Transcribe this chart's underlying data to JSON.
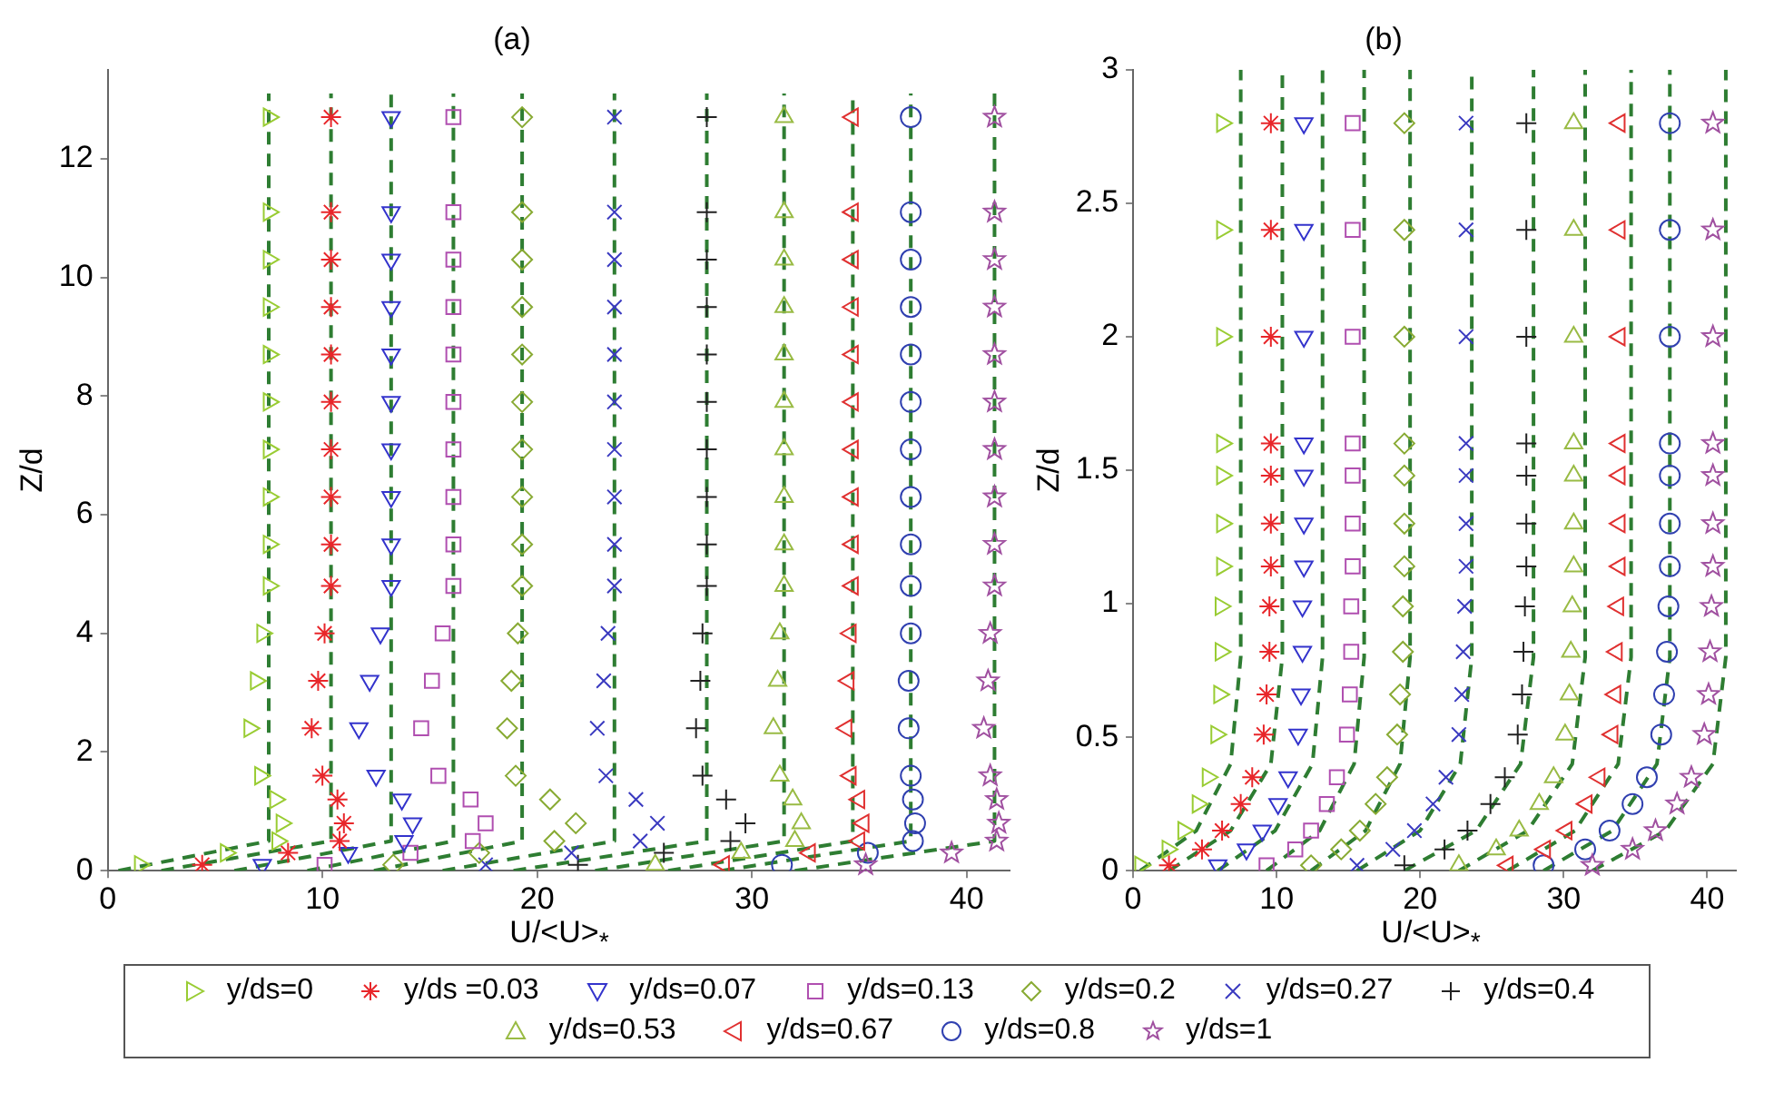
{
  "chart_data": [
    {
      "type": "scatter",
      "title": "(a)",
      "xlabel": "U/<U>$_{*}$",
      "ylabel": "Z/d",
      "xlim": [
        0,
        42
      ],
      "xticks": [
        0,
        10,
        20,
        30,
        40
      ],
      "ylim": [
        0,
        13.5
      ],
      "yticks": [
        0,
        2,
        4,
        6,
        8,
        10,
        12
      ],
      "legend": "bottom",
      "series": [
        {
          "name": "y/ds=0",
          "color": "#99cc33",
          "marker": "triangle-right",
          "x": [
            7.5,
            7.5,
            7.5,
            7.5,
            7.5,
            7.5,
            7.5,
            7.5,
            7.5,
            7.5,
            7.2,
            6.9,
            6.6,
            7.1,
            7.8,
            8.1,
            7.9,
            5.5,
            1.5
          ],
          "values": [
            12.7,
            11.1,
            10.3,
            9.5,
            8.7,
            7.9,
            7.1,
            6.3,
            5.5,
            4.8,
            4.0,
            3.2,
            2.4,
            1.6,
            1.2,
            0.8,
            0.5,
            0.3,
            0.1
          ]
        },
        {
          "name": "y/ds =0.03",
          "color": "#e8262a",
          "x": [
            10.4,
            10.4,
            10.4,
            10.4,
            10.4,
            10.4,
            10.4,
            10.4,
            10.4,
            10.4,
            10.1,
            9.8,
            9.5,
            10.0,
            10.7,
            11.0,
            10.8,
            8.4,
            4.4
          ],
          "values": [
            12.7,
            11.1,
            10.3,
            9.5,
            8.7,
            7.9,
            7.1,
            6.3,
            5.5,
            4.8,
            4.0,
            3.2,
            2.4,
            1.6,
            1.2,
            0.8,
            0.5,
            0.3,
            0.1
          ]
        },
        {
          "name": "y/ds=0.07",
          "color": "#3333cc",
          "marker": "triangle-down",
          "x": [
            13.2,
            13.2,
            13.2,
            13.2,
            13.2,
            13.2,
            13.2,
            13.2,
            13.2,
            13.2,
            12.7,
            12.2,
            11.7,
            12.5,
            13.7,
            14.2,
            13.8,
            11.2,
            7.2
          ],
          "values": [
            12.7,
            11.1,
            10.3,
            9.5,
            8.7,
            7.9,
            7.1,
            6.3,
            5.5,
            4.8,
            4.0,
            3.2,
            2.4,
            1.6,
            1.2,
            0.8,
            0.5,
            0.3,
            0.1
          ]
        },
        {
          "name": "y/ds=0.13",
          "color": "#b04fb0",
          "marker": "square",
          "x": [
            16.1,
            16.1,
            16.1,
            16.1,
            16.1,
            16.1,
            16.1,
            16.1,
            16.1,
            16.1,
            15.6,
            15.1,
            14.6,
            15.4,
            16.9,
            17.6,
            17.0,
            14.1,
            10.1
          ],
          "values": [
            12.7,
            11.1,
            10.3,
            9.5,
            8.7,
            7.9,
            7.1,
            6.3,
            5.5,
            4.8,
            4.0,
            3.2,
            2.4,
            1.6,
            1.2,
            0.8,
            0.5,
            0.3,
            0.1
          ]
        },
        {
          "name": "y/ds=0.2",
          "color": "#88aa33",
          "marker": "diamond",
          "x": [
            19.3,
            19.3,
            19.3,
            19.3,
            19.3,
            19.3,
            19.3,
            19.3,
            19.3,
            19.3,
            19.1,
            18.8,
            18.6,
            19.0,
            20.6,
            21.8,
            20.8,
            17.3,
            13.3
          ],
          "values": [
            12.7,
            11.1,
            10.3,
            9.5,
            8.7,
            7.9,
            7.1,
            6.3,
            5.5,
            4.8,
            4.0,
            3.2,
            2.4,
            1.6,
            1.2,
            0.8,
            0.5,
            0.3,
            0.1
          ]
        },
        {
          "name": "y/ds=0.27",
          "color": "#3a3ac0",
          "marker": "x",
          "x": [
            23.6,
            23.6,
            23.6,
            23.6,
            23.6,
            23.6,
            23.6,
            23.6,
            23.6,
            23.6,
            23.3,
            23.1,
            22.8,
            23.2,
            24.6,
            25.6,
            24.8,
            21.6,
            17.6
          ],
          "values": [
            12.7,
            11.1,
            10.3,
            9.5,
            8.7,
            7.9,
            7.1,
            6.3,
            5.5,
            4.8,
            4.0,
            3.2,
            2.4,
            1.6,
            1.2,
            0.8,
            0.5,
            0.3,
            0.1
          ]
        },
        {
          "name": "y/ds=0.4",
          "color": "#222222",
          "marker": "cross",
          "x": [
            27.9,
            27.9,
            27.9,
            27.9,
            27.9,
            27.9,
            27.9,
            27.9,
            27.9,
            27.9,
            27.7,
            27.6,
            27.4,
            27.7,
            28.8,
            29.7,
            29.0,
            25.9,
            21.9
          ],
          "values": [
            12.7,
            11.1,
            10.3,
            9.5,
            8.7,
            7.9,
            7.1,
            6.3,
            5.5,
            4.8,
            4.0,
            3.2,
            2.4,
            1.6,
            1.2,
            0.8,
            0.5,
            0.3,
            0.1
          ]
        },
        {
          "name": "y/ds=0.53",
          "color": "#99bb44",
          "marker": "triangle",
          "x": [
            31.5,
            31.5,
            31.5,
            31.5,
            31.5,
            31.5,
            31.5,
            31.5,
            31.5,
            31.5,
            31.3,
            31.2,
            31.0,
            31.3,
            31.9,
            32.3,
            32.0,
            29.5,
            25.5
          ],
          "values": [
            12.7,
            11.1,
            10.3,
            9.5,
            8.7,
            7.9,
            7.1,
            6.3,
            5.5,
            4.8,
            4.0,
            3.2,
            2.4,
            1.6,
            1.2,
            0.8,
            0.5,
            0.3,
            0.1
          ]
        },
        {
          "name": "y/ds=0.67",
          "color": "#e03030",
          "marker": "triangle-left",
          "x": [
            34.7,
            34.7,
            34.7,
            34.7,
            34.7,
            34.7,
            34.7,
            34.7,
            34.7,
            34.7,
            34.6,
            34.5,
            34.4,
            34.6,
            35.0,
            35.2,
            35.0,
            32.7,
            28.7
          ],
          "values": [
            12.7,
            11.1,
            10.3,
            9.5,
            8.7,
            7.9,
            7.1,
            6.3,
            5.5,
            4.8,
            4.0,
            3.2,
            2.4,
            1.6,
            1.2,
            0.8,
            0.5,
            0.3,
            0.1
          ]
        },
        {
          "name": "y/ds=0.8",
          "color": "#3040b0",
          "marker": "circle",
          "x": [
            37.4,
            37.4,
            37.4,
            37.4,
            37.4,
            37.4,
            37.4,
            37.4,
            37.4,
            37.4,
            37.4,
            37.3,
            37.3,
            37.4,
            37.5,
            37.6,
            37.5,
            35.4,
            31.4
          ],
          "values": [
            12.7,
            11.1,
            10.3,
            9.5,
            8.7,
            7.9,
            7.1,
            6.3,
            5.5,
            4.8,
            4.0,
            3.2,
            2.4,
            1.6,
            1.2,
            0.8,
            0.5,
            0.3,
            0.1
          ]
        },
        {
          "name": "y/ds=1",
          "color": "#a050a0",
          "marker": "star",
          "x": [
            41.3,
            41.3,
            41.3,
            41.3,
            41.3,
            41.3,
            41.3,
            41.3,
            41.3,
            41.3,
            41.1,
            41.0,
            40.8,
            41.1,
            41.4,
            41.5,
            41.4,
            39.3,
            35.3
          ],
          "values": [
            12.7,
            11.1,
            10.3,
            9.5,
            8.7,
            7.9,
            7.1,
            6.3,
            5.5,
            4.8,
            4.0,
            3.2,
            2.4,
            1.6,
            1.2,
            0.8,
            0.5,
            0.3,
            0.1
          ]
        },
        {
          "type": "line",
          "color": "#2e7d32",
          "line_style": "dashed",
          "marker": "none",
          "x": [
            0.5,
            7.5,
            7.5
          ],
          "values": [
            0,
            0.5,
            13.1
          ]
        },
        {
          "type": "line",
          "color": "#2e7d32",
          "line_style": "dashed",
          "marker": "none",
          "x": [
            2.5,
            10.4,
            10.4
          ],
          "values": [
            0,
            0.5,
            13.1
          ]
        },
        {
          "type": "line",
          "color": "#2e7d32",
          "line_style": "dashed",
          "marker": "none",
          "x": [
            5.9,
            13.2,
            13.2
          ],
          "values": [
            0,
            0.5,
            13.1
          ]
        },
        {
          "type": "line",
          "color": "#2e7d32",
          "line_style": "dashed",
          "marker": "none",
          "x": [
            9.3,
            16.1,
            16.1
          ],
          "values": [
            0,
            0.5,
            13.1
          ]
        },
        {
          "type": "line",
          "color": "#2e7d32",
          "line_style": "dashed",
          "marker": "none",
          "x": [
            12.4,
            19.3,
            19.3
          ],
          "values": [
            0,
            0.5,
            13.1
          ]
        },
        {
          "type": "line",
          "color": "#2e7d32",
          "line_style": "dashed",
          "marker": "none",
          "x": [
            15.6,
            23.6,
            23.6
          ],
          "values": [
            0,
            0.5,
            13.1
          ]
        },
        {
          "type": "line",
          "color": "#2e7d32",
          "line_style": "dashed",
          "marker": "none",
          "x": [
            18.9,
            27.9,
            27.9
          ],
          "values": [
            0,
            0.5,
            13.1
          ]
        },
        {
          "type": "line",
          "color": "#2e7d32",
          "line_style": "dashed",
          "marker": "none",
          "x": [
            22.7,
            31.5,
            31.5
          ],
          "values": [
            0,
            0.5,
            13.1
          ]
        },
        {
          "type": "line",
          "color": "#2e7d32",
          "line_style": "dashed",
          "marker": "none",
          "x": [
            26.1,
            34.7,
            34.7
          ],
          "values": [
            0,
            0.5,
            13.1
          ]
        },
        {
          "type": "line",
          "color": "#2e7d32",
          "line_style": "dashed",
          "marker": "none",
          "x": [
            28.6,
            37.4,
            37.4
          ],
          "values": [
            0,
            0.5,
            13.1
          ]
        },
        {
          "type": "line",
          "color": "#2e7d32",
          "line_style": "dashed",
          "marker": "none",
          "x": [
            32.0,
            41.3,
            41.3
          ],
          "values": [
            0,
            0.5,
            13.1
          ]
        }
      ]
    },
    {
      "type": "scatter",
      "title": "(b)",
      "xlabel": "U/<U>$_{*}$",
      "ylabel": "Z/d",
      "xlim": [
        0,
        42
      ],
      "xticks": [
        0,
        10,
        20,
        30,
        40
      ],
      "ylim": [
        0,
        3
      ],
      "yticks": [
        0,
        0.5,
        1,
        1.5,
        2,
        2.5,
        3
      ],
      "series": [
        {
          "color": "#99cc33",
          "marker": "triangle-right",
          "x": [
            6.2,
            6.2,
            6.2,
            6.2,
            6.2,
            6.2,
            6.2,
            6.1,
            6.1,
            6.0,
            5.8,
            5.2,
            4.5,
            3.5,
            2.4,
            0.5
          ],
          "values": [
            2.8,
            2.4,
            2.0,
            1.6,
            1.48,
            1.3,
            1.14,
            0.99,
            0.82,
            0.66,
            0.51,
            0.35,
            0.25,
            0.15,
            0.08,
            0.02
          ]
        },
        {
          "color": "#e8262a",
          "x": [
            9.6,
            9.6,
            9.6,
            9.6,
            9.6,
            9.6,
            9.6,
            9.5,
            9.5,
            9.3,
            9.1,
            8.3,
            7.5,
            6.2,
            4.8,
            2.5
          ],
          "values": [
            2.8,
            2.4,
            2.0,
            1.6,
            1.48,
            1.3,
            1.14,
            0.99,
            0.82,
            0.66,
            0.51,
            0.35,
            0.25,
            0.15,
            0.08,
            0.02
          ]
        },
        {
          "color": "#3333cc",
          "marker": "triangle-down",
          "x": [
            11.9,
            11.9,
            11.9,
            11.9,
            11.9,
            11.9,
            11.9,
            11.8,
            11.8,
            11.7,
            11.5,
            10.8,
            10.1,
            9.0,
            7.9,
            5.9
          ],
          "values": [
            2.8,
            2.4,
            2.0,
            1.6,
            1.48,
            1.3,
            1.14,
            0.99,
            0.82,
            0.66,
            0.51,
            0.35,
            0.25,
            0.15,
            0.08,
            0.02
          ]
        },
        {
          "color": "#b04fb0",
          "marker": "square",
          "x": [
            15.3,
            15.3,
            15.3,
            15.3,
            15.3,
            15.3,
            15.3,
            15.2,
            15.2,
            15.1,
            14.9,
            14.2,
            13.5,
            12.4,
            11.3,
            9.3
          ],
          "values": [
            2.8,
            2.4,
            2.0,
            1.6,
            1.48,
            1.3,
            1.14,
            0.99,
            0.82,
            0.66,
            0.51,
            0.35,
            0.25,
            0.15,
            0.08,
            0.02
          ]
        },
        {
          "color": "#88aa33",
          "marker": "diamond",
          "x": [
            18.9,
            18.9,
            18.9,
            18.9,
            18.9,
            18.9,
            18.9,
            18.8,
            18.8,
            18.6,
            18.4,
            17.7,
            16.9,
            15.8,
            14.5,
            12.4
          ],
          "values": [
            2.8,
            2.4,
            2.0,
            1.6,
            1.48,
            1.3,
            1.14,
            0.99,
            0.82,
            0.66,
            0.51,
            0.35,
            0.25,
            0.15,
            0.08,
            0.02
          ]
        },
        {
          "color": "#3a3ac0",
          "marker": "x",
          "x": [
            23.2,
            23.2,
            23.2,
            23.2,
            23.2,
            23.2,
            23.2,
            23.1,
            23.0,
            22.9,
            22.7,
            21.8,
            20.9,
            19.6,
            18.1,
            15.6
          ],
          "values": [
            2.8,
            2.4,
            2.0,
            1.6,
            1.48,
            1.3,
            1.14,
            0.99,
            0.82,
            0.66,
            0.51,
            0.35,
            0.25,
            0.15,
            0.08,
            0.02
          ]
        },
        {
          "color": "#222222",
          "marker": "cross",
          "x": [
            27.4,
            27.4,
            27.4,
            27.4,
            27.4,
            27.4,
            27.4,
            27.3,
            27.2,
            27.1,
            26.8,
            25.9,
            24.9,
            23.3,
            21.7,
            18.9
          ],
          "values": [
            2.8,
            2.4,
            2.0,
            1.6,
            1.48,
            1.3,
            1.14,
            0.99,
            0.82,
            0.66,
            0.51,
            0.35,
            0.25,
            0.15,
            0.08,
            0.02
          ]
        },
        {
          "color": "#99bb44",
          "marker": "triangle",
          "x": [
            30.7,
            30.7,
            30.7,
            30.7,
            30.7,
            30.7,
            30.7,
            30.6,
            30.5,
            30.4,
            30.1,
            29.3,
            28.3,
            26.9,
            25.3,
            22.7
          ],
          "values": [
            2.8,
            2.4,
            2.0,
            1.6,
            1.48,
            1.3,
            1.14,
            0.99,
            0.82,
            0.66,
            0.51,
            0.35,
            0.25,
            0.15,
            0.08,
            0.02
          ]
        },
        {
          "color": "#e03030",
          "marker": "triangle-left",
          "x": [
            33.9,
            33.9,
            33.9,
            33.9,
            33.9,
            33.9,
            33.9,
            33.8,
            33.7,
            33.6,
            33.4,
            32.5,
            31.6,
            30.2,
            28.7,
            26.1
          ],
          "values": [
            2.8,
            2.4,
            2.0,
            1.6,
            1.48,
            1.3,
            1.14,
            0.99,
            0.82,
            0.66,
            0.51,
            0.35,
            0.25,
            0.15,
            0.08,
            0.02
          ]
        },
        {
          "color": "#3040b0",
          "marker": "circle",
          "x": [
            37.4,
            37.4,
            37.4,
            37.4,
            37.4,
            37.4,
            37.4,
            37.3,
            37.2,
            37.0,
            36.8,
            35.8,
            34.8,
            33.2,
            31.5,
            28.6
          ],
          "values": [
            2.8,
            2.4,
            2.0,
            1.6,
            1.48,
            1.3,
            1.14,
            0.99,
            0.82,
            0.66,
            0.51,
            0.35,
            0.25,
            0.15,
            0.08,
            0.02
          ]
        },
        {
          "color": "#a050a0",
          "marker": "star",
          "x": [
            40.4,
            40.4,
            40.4,
            40.4,
            40.4,
            40.4,
            40.4,
            40.3,
            40.2,
            40.1,
            39.8,
            38.9,
            37.9,
            36.4,
            34.8,
            32.0
          ],
          "values": [
            2.8,
            2.4,
            2.0,
            1.6,
            1.48,
            1.3,
            1.14,
            0.99,
            0.82,
            0.66,
            0.51,
            0.35,
            0.25,
            0.15,
            0.08,
            0.02
          ]
        },
        {
          "type": "line",
          "color": "#2e7d32",
          "line_style": "dashed",
          "marker": "none",
          "x": [
            0.5,
            4.4,
            6.8,
            7.5,
            7.5
          ],
          "values": [
            0,
            0.15,
            0.4,
            0.8,
            3
          ]
        },
        {
          "type": "line",
          "color": "#2e7d32",
          "line_style": "dashed",
          "marker": "none",
          "x": [
            2.5,
            6.8,
            9.6,
            10.4,
            10.4
          ],
          "values": [
            0,
            0.15,
            0.4,
            0.8,
            3
          ]
        },
        {
          "type": "line",
          "color": "#2e7d32",
          "line_style": "dashed",
          "marker": "none",
          "x": [
            5.9,
            9.9,
            12.5,
            13.2,
            13.2
          ],
          "values": [
            0,
            0.15,
            0.4,
            0.8,
            3
          ]
        },
        {
          "type": "line",
          "color": "#2e7d32",
          "line_style": "dashed",
          "marker": "none",
          "x": [
            9.3,
            13.0,
            15.4,
            16.1,
            16.1
          ],
          "values": [
            0,
            0.15,
            0.4,
            0.8,
            3
          ]
        },
        {
          "type": "line",
          "color": "#2e7d32",
          "line_style": "dashed",
          "marker": "none",
          "x": [
            12.4,
            16.2,
            18.6,
            19.3,
            19.3
          ],
          "values": [
            0,
            0.15,
            0.4,
            0.8,
            3
          ]
        },
        {
          "type": "line",
          "color": "#2e7d32",
          "line_style": "dashed",
          "marker": "none",
          "x": [
            15.6,
            20.0,
            22.8,
            23.6,
            23.6
          ],
          "values": [
            0,
            0.15,
            0.4,
            0.8,
            3
          ]
        },
        {
          "type": "line",
          "color": "#2e7d32",
          "line_style": "dashed",
          "marker": "none",
          "x": [
            18.9,
            23.9,
            27.0,
            27.9,
            27.9
          ],
          "values": [
            0,
            0.15,
            0.4,
            0.8,
            3
          ]
        },
        {
          "type": "line",
          "color": "#2e7d32",
          "line_style": "dashed",
          "marker": "none",
          "x": [
            22.7,
            27.5,
            30.6,
            31.5,
            31.5
          ],
          "values": [
            0,
            0.15,
            0.4,
            0.8,
            3
          ]
        },
        {
          "type": "line",
          "color": "#2e7d32",
          "line_style": "dashed",
          "marker": "none",
          "x": [
            26.1,
            30.8,
            33.8,
            34.7,
            34.7
          ],
          "values": [
            0,
            0.15,
            0.4,
            0.8,
            3
          ]
        },
        {
          "type": "line",
          "color": "#2e7d32",
          "line_style": "dashed",
          "marker": "none",
          "x": [
            28.6,
            33.4,
            36.5,
            37.4,
            37.4
          ],
          "values": [
            0,
            0.15,
            0.4,
            0.8,
            3
          ]
        },
        {
          "type": "line",
          "color": "#2e7d32",
          "line_style": "dashed",
          "marker": "none",
          "x": [
            32.0,
            37.1,
            40.4,
            41.3,
            41.3
          ],
          "values": [
            0,
            0.15,
            0.4,
            0.8,
            3
          ]
        }
      ]
    }
  ]
}
